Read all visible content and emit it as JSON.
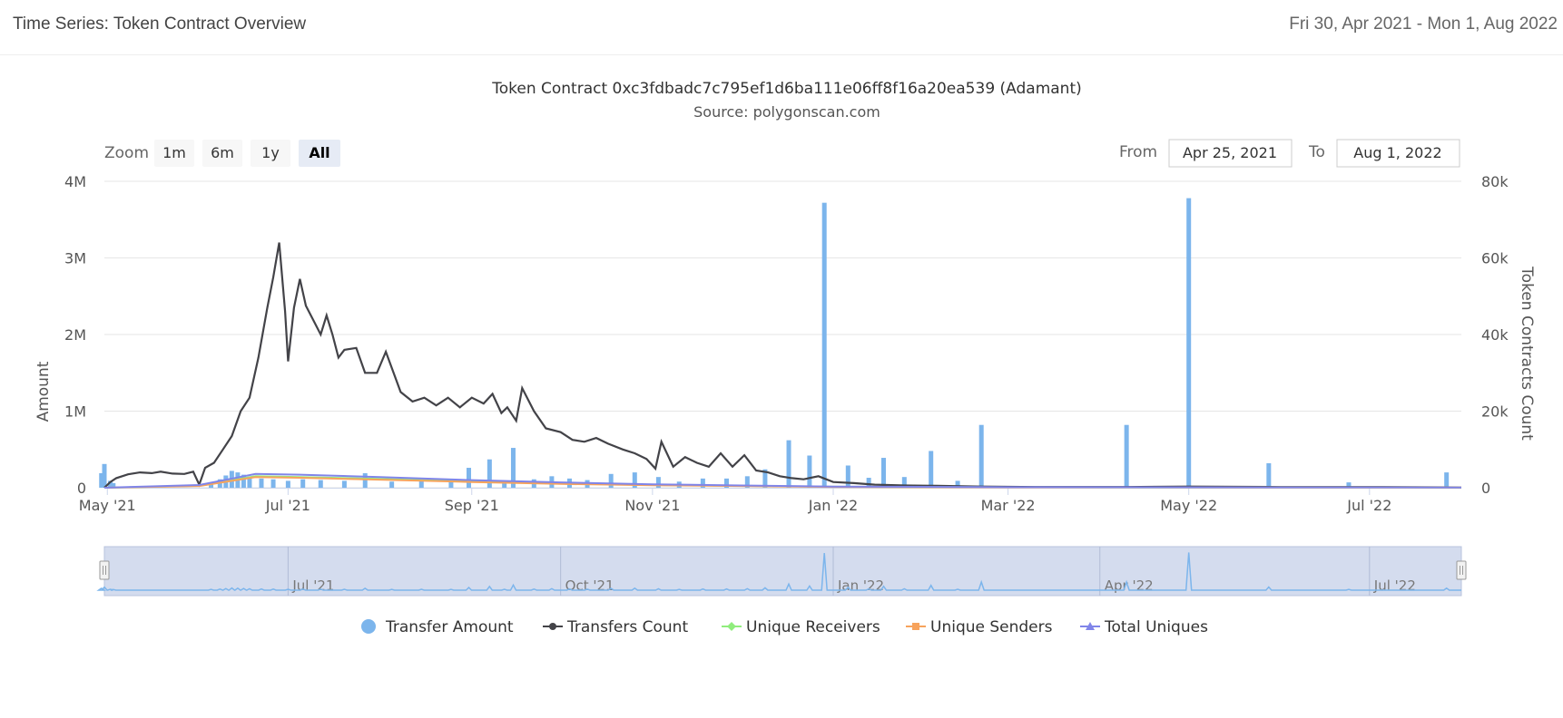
{
  "page": {
    "title": "Time Series: Token Contract Overview",
    "date_range": "Fri 30, Apr 2021 - Mon 1, Aug 2022"
  },
  "controls": {
    "zoom_label": "Zoom",
    "zoom_buttons": [
      "1m",
      "6m",
      "1y",
      "All"
    ],
    "active_zoom": "All",
    "from_label": "From",
    "from_value": "Apr 25, 2021",
    "to_label": "To",
    "to_value": "Aug 1, 2022"
  },
  "colors": {
    "transfer_amount": "#7cb5ec",
    "transfers_count": "#434348",
    "unique_receivers": "#90ed7d",
    "unique_senders": "#f7a35c",
    "total_uniques": "#8085e9",
    "navigator_fill": "#ccd6eb"
  },
  "chart_data": {
    "type": "bar+line",
    "title": "Token Contract 0xc3fdbadc7c795ef1d6ba111e06ff8f16a20ea539 (Adamant)",
    "subtitle": "Source: polygonscan.com",
    "ylabel": "Amount",
    "y2label": "Token Contracts Count",
    "ylim": [
      0,
      4000000
    ],
    "y2lim": [
      0,
      80000
    ],
    "y_ticks": [
      "0",
      "1M",
      "2M",
      "3M",
      "4M"
    ],
    "y2_ticks": [
      "0",
      "20k",
      "40k",
      "60k",
      "80k"
    ],
    "x_start": "2021-04-30",
    "x_end": "2022-08-01",
    "x_ticks": [
      {
        "date": "2021-05-01",
        "label": "May '21"
      },
      {
        "date": "2021-07-01",
        "label": "Jul '21"
      },
      {
        "date": "2021-09-01",
        "label": "Sep '21"
      },
      {
        "date": "2021-11-01",
        "label": "Nov '21"
      },
      {
        "date": "2022-01-01",
        "label": "Jan '22"
      },
      {
        "date": "2022-03-01",
        "label": "Mar '22"
      },
      {
        "date": "2022-05-01",
        "label": "May '22"
      },
      {
        "date": "2022-07-01",
        "label": "Jul '22"
      }
    ],
    "navigator_ticks": [
      {
        "date": "2021-07-01",
        "label": "Jul '21"
      },
      {
        "date": "2021-10-01",
        "label": "Oct '21"
      },
      {
        "date": "2022-01-01",
        "label": "Jan '22"
      },
      {
        "date": "2022-04-01",
        "label": "Apr '22"
      },
      {
        "date": "2022-07-01",
        "label": "Jul '22"
      }
    ],
    "series": [
      {
        "name": "Transfer Amount",
        "kind": "column",
        "axis": "left",
        "points": [
          [
            "2021-04-29",
            190000
          ],
          [
            "2021-04-30",
            310000
          ],
          [
            "2021-05-02",
            90000
          ],
          [
            "2021-05-03",
            60000
          ],
          [
            "2021-06-05",
            70000
          ],
          [
            "2021-06-08",
            110000
          ],
          [
            "2021-06-10",
            160000
          ],
          [
            "2021-06-12",
            220000
          ],
          [
            "2021-06-14",
            200000
          ],
          [
            "2021-06-16",
            170000
          ],
          [
            "2021-06-18",
            140000
          ],
          [
            "2021-06-22",
            120000
          ],
          [
            "2021-06-26",
            110000
          ],
          [
            "2021-07-01",
            90000
          ],
          [
            "2021-07-06",
            110000
          ],
          [
            "2021-07-12",
            100000
          ],
          [
            "2021-07-20",
            90000
          ],
          [
            "2021-07-27",
            190000
          ],
          [
            "2021-08-05",
            80000
          ],
          [
            "2021-08-15",
            90000
          ],
          [
            "2021-08-25",
            80000
          ],
          [
            "2021-08-31",
            260000
          ],
          [
            "2021-09-07",
            370000
          ],
          [
            "2021-09-12",
            90000
          ],
          [
            "2021-09-15",
            520000
          ],
          [
            "2021-09-22",
            110000
          ],
          [
            "2021-09-28",
            150000
          ],
          [
            "2021-10-04",
            120000
          ],
          [
            "2021-10-10",
            100000
          ],
          [
            "2021-10-18",
            180000
          ],
          [
            "2021-10-26",
            200000
          ],
          [
            "2021-11-03",
            140000
          ],
          [
            "2021-11-10",
            80000
          ],
          [
            "2021-11-18",
            120000
          ],
          [
            "2021-11-26",
            120000
          ],
          [
            "2021-12-03",
            150000
          ],
          [
            "2021-12-09",
            240000
          ],
          [
            "2021-12-17",
            620000
          ],
          [
            "2021-12-24",
            420000
          ],
          [
            "2021-12-29",
            3720000
          ],
          [
            "2022-01-06",
            290000
          ],
          [
            "2022-01-13",
            130000
          ],
          [
            "2022-01-18",
            390000
          ],
          [
            "2022-01-25",
            140000
          ],
          [
            "2022-02-03",
            480000
          ],
          [
            "2022-02-12",
            90000
          ],
          [
            "2022-02-20",
            820000
          ],
          [
            "2022-04-10",
            820000
          ],
          [
            "2022-05-01",
            3780000
          ],
          [
            "2022-05-28",
            320000
          ],
          [
            "2022-06-24",
            70000
          ],
          [
            "2022-07-27",
            200000
          ]
        ]
      },
      {
        "name": "Transfers Count",
        "kind": "line",
        "axis": "right",
        "points": [
          [
            "2021-04-30",
            0
          ],
          [
            "2021-05-02",
            1500
          ],
          [
            "2021-05-04",
            2500
          ],
          [
            "2021-05-08",
            3500
          ],
          [
            "2021-05-12",
            4000
          ],
          [
            "2021-05-16",
            3800
          ],
          [
            "2021-05-19",
            4200
          ],
          [
            "2021-05-23",
            3700
          ],
          [
            "2021-05-27",
            3600
          ],
          [
            "2021-05-30",
            4200
          ],
          [
            "2021-06-01",
            800
          ],
          [
            "2021-06-03",
            5200
          ],
          [
            "2021-06-06",
            6500
          ],
          [
            "2021-06-09",
            10000
          ],
          [
            "2021-06-12",
            13500
          ],
          [
            "2021-06-15",
            20000
          ],
          [
            "2021-06-18",
            23500
          ],
          [
            "2021-06-21",
            34000
          ],
          [
            "2021-06-24",
            47000
          ],
          [
            "2021-06-26",
            55000
          ],
          [
            "2021-06-28",
            64000
          ],
          [
            "2021-06-30",
            46000
          ],
          [
            "2021-07-01",
            33000
          ],
          [
            "2021-07-03",
            47000
          ],
          [
            "2021-07-05",
            54500
          ],
          [
            "2021-07-07",
            47500
          ],
          [
            "2021-07-10",
            43000
          ],
          [
            "2021-07-12",
            40000
          ],
          [
            "2021-07-14",
            45000
          ],
          [
            "2021-07-16",
            40000
          ],
          [
            "2021-07-18",
            34000
          ],
          [
            "2021-07-20",
            36000
          ],
          [
            "2021-07-24",
            36500
          ],
          [
            "2021-07-27",
            30000
          ],
          [
            "2021-07-31",
            30000
          ],
          [
            "2021-08-03",
            35500
          ],
          [
            "2021-08-08",
            25000
          ],
          [
            "2021-08-12",
            22500
          ],
          [
            "2021-08-16",
            23500
          ],
          [
            "2021-08-20",
            21500
          ],
          [
            "2021-08-24",
            23500
          ],
          [
            "2021-08-28",
            21000
          ],
          [
            "2021-09-01",
            23500
          ],
          [
            "2021-09-05",
            22000
          ],
          [
            "2021-09-08",
            24500
          ],
          [
            "2021-09-11",
            19500
          ],
          [
            "2021-09-13",
            21000
          ],
          [
            "2021-09-16",
            17500
          ],
          [
            "2021-09-18",
            26000
          ],
          [
            "2021-09-22",
            20000
          ],
          [
            "2021-09-26",
            15500
          ],
          [
            "2021-10-01",
            14500
          ],
          [
            "2021-10-05",
            12500
          ],
          [
            "2021-10-09",
            12000
          ],
          [
            "2021-10-13",
            13000
          ],
          [
            "2021-10-17",
            11500
          ],
          [
            "2021-10-22",
            10000
          ],
          [
            "2021-10-26",
            9000
          ],
          [
            "2021-10-30",
            7500
          ],
          [
            "2021-11-02",
            5000
          ],
          [
            "2021-11-04",
            12000
          ],
          [
            "2021-11-08",
            5500
          ],
          [
            "2021-11-12",
            8000
          ],
          [
            "2021-11-16",
            6500
          ],
          [
            "2021-11-20",
            5500
          ],
          [
            "2021-11-24",
            9000
          ],
          [
            "2021-11-28",
            5500
          ],
          [
            "2021-12-02",
            8500
          ],
          [
            "2021-12-06",
            4500
          ],
          [
            "2021-12-10",
            4000
          ],
          [
            "2021-12-14",
            3000
          ],
          [
            "2021-12-18",
            2500
          ],
          [
            "2021-12-22",
            2200
          ],
          [
            "2021-12-27",
            3000
          ],
          [
            "2022-01-01",
            1500
          ],
          [
            "2022-01-08",
            1200
          ],
          [
            "2022-01-15",
            800
          ],
          [
            "2022-01-25",
            600
          ],
          [
            "2022-02-05",
            500
          ],
          [
            "2022-02-20",
            300
          ],
          [
            "2022-03-10",
            200
          ],
          [
            "2022-04-10",
            200
          ],
          [
            "2022-05-01",
            300
          ],
          [
            "2022-06-01",
            200
          ],
          [
            "2022-07-01",
            200
          ],
          [
            "2022-08-01",
            100
          ]
        ]
      },
      {
        "name": "Unique Receivers",
        "kind": "line",
        "axis": "right",
        "points": [
          [
            "2021-04-30",
            0
          ],
          [
            "2021-06-01",
            500
          ],
          [
            "2021-06-20",
            3000
          ],
          [
            "2021-07-05",
            2800
          ],
          [
            "2021-08-01",
            2300
          ],
          [
            "2021-09-01",
            1600
          ],
          [
            "2021-10-01",
            1100
          ],
          [
            "2021-11-01",
            700
          ],
          [
            "2021-12-01",
            500
          ],
          [
            "2022-01-01",
            250
          ],
          [
            "2022-03-01",
            120
          ],
          [
            "2022-08-01",
            60
          ]
        ]
      },
      {
        "name": "Unique Senders",
        "kind": "line",
        "axis": "right",
        "points": [
          [
            "2021-04-30",
            0
          ],
          [
            "2021-06-01",
            450
          ],
          [
            "2021-06-20",
            2800
          ],
          [
            "2021-07-05",
            2600
          ],
          [
            "2021-08-01",
            2100
          ],
          [
            "2021-09-01",
            1500
          ],
          [
            "2021-10-01",
            1000
          ],
          [
            "2021-11-01",
            650
          ],
          [
            "2021-12-01",
            450
          ],
          [
            "2022-01-01",
            220
          ],
          [
            "2022-03-01",
            100
          ],
          [
            "2022-08-01",
            50
          ]
        ]
      },
      {
        "name": "Total Uniques",
        "kind": "line",
        "axis": "right",
        "points": [
          [
            "2021-04-30",
            0
          ],
          [
            "2021-06-01",
            700
          ],
          [
            "2021-06-20",
            3600
          ],
          [
            "2021-07-05",
            3400
          ],
          [
            "2021-08-01",
            2800
          ],
          [
            "2021-09-01",
            2000
          ],
          [
            "2021-10-01",
            1400
          ],
          [
            "2021-11-01",
            900
          ],
          [
            "2021-12-01",
            600
          ],
          [
            "2022-01-01",
            300
          ],
          [
            "2022-03-01",
            150
          ],
          [
            "2022-08-01",
            80
          ]
        ]
      }
    ],
    "legend": [
      "Transfer Amount",
      "Transfers Count",
      "Unique Receivers",
      "Unique Senders",
      "Total Uniques"
    ],
    "legend_position": "bottom-center"
  }
}
